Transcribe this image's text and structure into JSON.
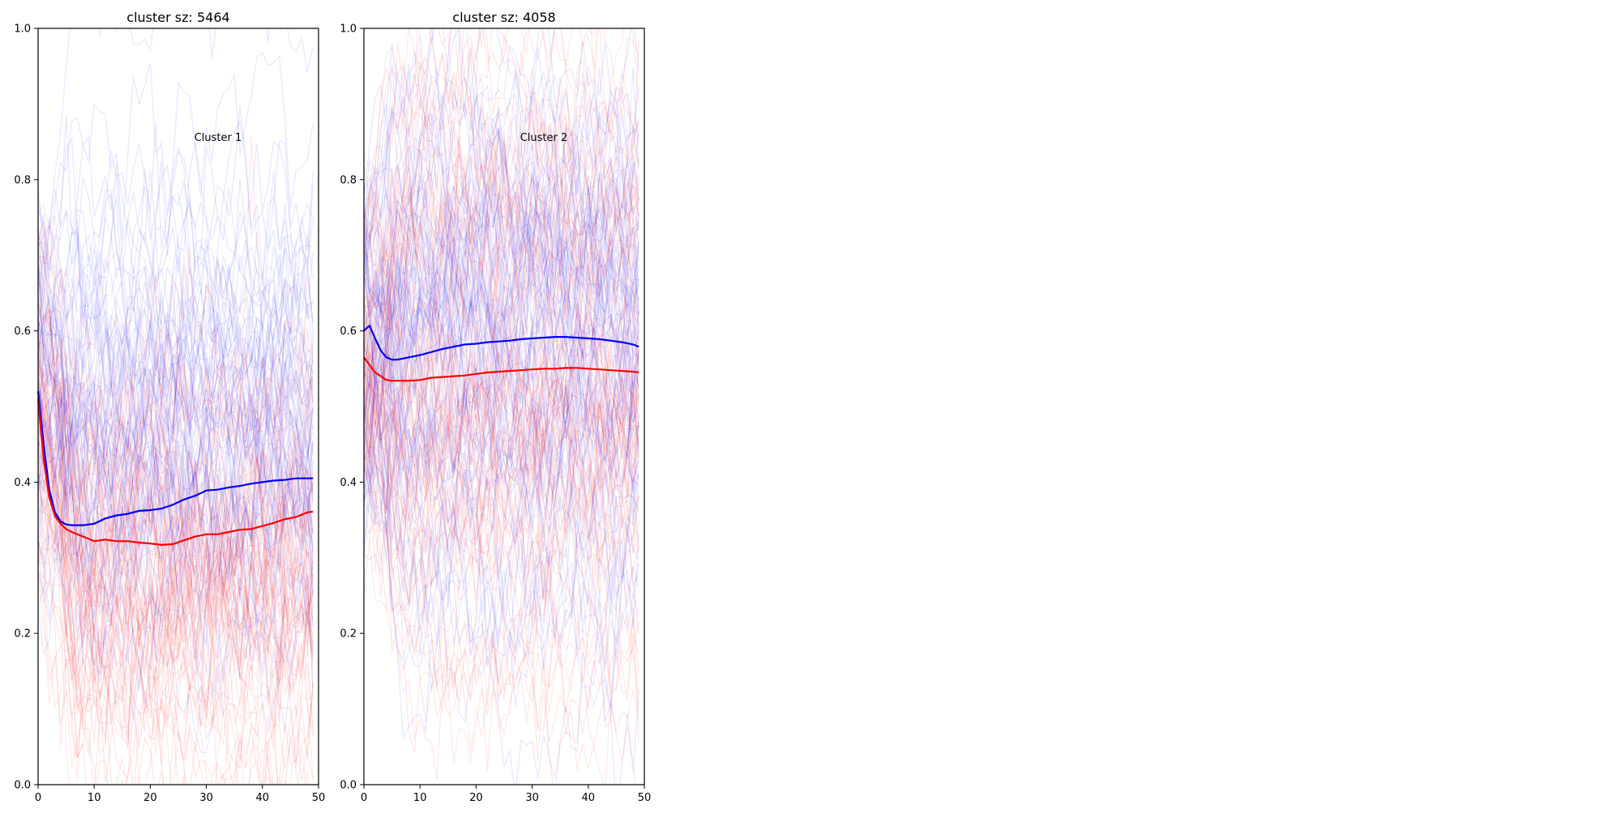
{
  "chart_data": [
    {
      "type": "line",
      "title": "cluster sz: 5464",
      "annotation": "Cluster 1",
      "xlim": [
        0,
        50
      ],
      "ylim": [
        0.0,
        1.0
      ],
      "xticks": [
        "0",
        "10",
        "20",
        "30",
        "40",
        "50"
      ],
      "yticks": [
        "0.0",
        "0.2",
        "0.4",
        "0.6",
        "0.8",
        "1.0"
      ],
      "grid": false,
      "colors": {
        "blue": "#0000ff",
        "red": "#ff0000"
      },
      "background_traces": {
        "count_shown": 140,
        "red_center": 0.25,
        "blue_center": 0.48,
        "spread": 0.15,
        "opacity": 0.09
      },
      "series": [
        {
          "color": "#0000ff",
          "x": [
            0,
            1,
            2,
            3,
            4,
            5,
            6,
            8,
            10,
            12,
            14,
            16,
            18,
            20,
            22,
            24,
            26,
            28,
            30,
            32,
            34,
            36,
            38,
            40,
            42,
            44,
            46,
            48,
            49
          ],
          "values": [
            0.52,
            0.45,
            0.39,
            0.36,
            0.348,
            0.344,
            0.343,
            0.343,
            0.345,
            0.352,
            0.356,
            0.358,
            0.362,
            0.363,
            0.365,
            0.37,
            0.377,
            0.382,
            0.389,
            0.39,
            0.393,
            0.395,
            0.398,
            0.4,
            0.402,
            0.403,
            0.405,
            0.405,
            0.405
          ]
        },
        {
          "color": "#ff0000",
          "x": [
            0,
            1,
            2,
            3,
            4,
            5,
            6,
            8,
            10,
            12,
            14,
            16,
            18,
            20,
            22,
            24,
            26,
            28,
            30,
            32,
            34,
            36,
            38,
            40,
            42,
            44,
            46,
            48,
            49
          ],
          "values": [
            0.51,
            0.43,
            0.38,
            0.355,
            0.345,
            0.338,
            0.334,
            0.328,
            0.322,
            0.324,
            0.322,
            0.322,
            0.32,
            0.319,
            0.317,
            0.318,
            0.323,
            0.328,
            0.331,
            0.331,
            0.334,
            0.337,
            0.338,
            0.342,
            0.346,
            0.351,
            0.354,
            0.36,
            0.361
          ]
        }
      ]
    },
    {
      "type": "line",
      "title": "cluster sz: 4058",
      "annotation": "Cluster 2",
      "xlim": [
        0,
        50
      ],
      "ylim": [
        0.0,
        1.0
      ],
      "xticks": [
        "0",
        "10",
        "20",
        "30",
        "40",
        "50"
      ],
      "yticks": [
        "0.0",
        "0.2",
        "0.4",
        "0.6",
        "0.8",
        "1.0"
      ],
      "grid": false,
      "colors": {
        "blue": "#0000ff",
        "red": "#ff0000"
      },
      "background_traces": {
        "count_shown": 160,
        "red_center": 0.53,
        "blue_center": 0.6,
        "spread": 0.19,
        "opacity": 0.09
      },
      "series": [
        {
          "color": "#0000ff",
          "x": [
            0,
            1,
            2,
            3,
            4,
            5,
            6,
            8,
            10,
            12,
            14,
            16,
            18,
            20,
            22,
            24,
            26,
            28,
            30,
            32,
            34,
            36,
            38,
            40,
            42,
            44,
            46,
            48,
            49
          ],
          "values": [
            0.6,
            0.607,
            0.59,
            0.574,
            0.565,
            0.562,
            0.562,
            0.565,
            0.568,
            0.572,
            0.576,
            0.579,
            0.582,
            0.583,
            0.585,
            0.586,
            0.587,
            0.589,
            0.59,
            0.591,
            0.592,
            0.592,
            0.591,
            0.59,
            0.589,
            0.587,
            0.585,
            0.582,
            0.579
          ]
        },
        {
          "color": "#ff0000",
          "x": [
            0,
            1,
            2,
            3,
            4,
            5,
            6,
            8,
            10,
            12,
            14,
            16,
            18,
            20,
            22,
            24,
            26,
            28,
            30,
            32,
            34,
            36,
            38,
            40,
            42,
            44,
            46,
            48,
            49
          ],
          "values": [
            0.565,
            0.555,
            0.545,
            0.54,
            0.535,
            0.534,
            0.534,
            0.534,
            0.535,
            0.538,
            0.539,
            0.54,
            0.541,
            0.543,
            0.545,
            0.546,
            0.547,
            0.548,
            0.549,
            0.55,
            0.55,
            0.551,
            0.551,
            0.55,
            0.549,
            0.548,
            0.547,
            0.546,
            0.545
          ]
        }
      ]
    }
  ]
}
